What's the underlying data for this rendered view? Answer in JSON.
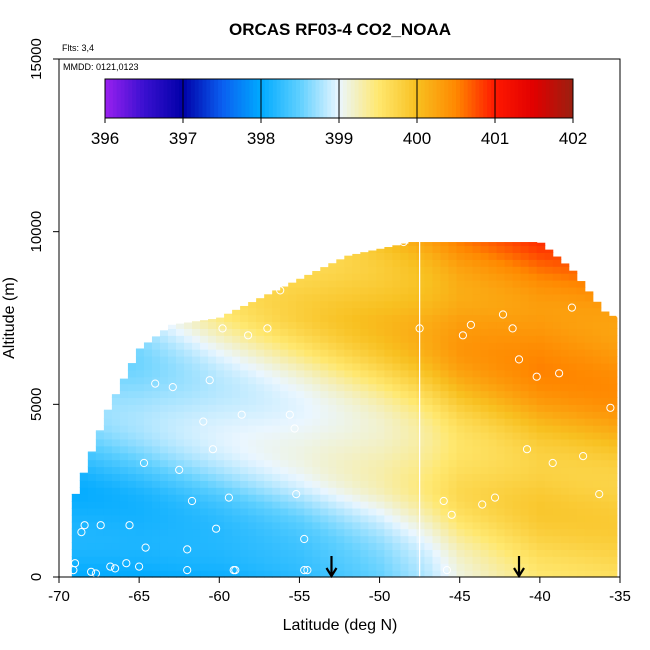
{
  "chart_data": {
    "type": "heatmap",
    "title": "ORCAS RF03-4 CO2_NOAA",
    "xlabel": "Latitude (deg N)",
    "ylabel": "Altitude (m)",
    "xlim": [
      -70,
      -35
    ],
    "ylim": [
      0,
      15000
    ],
    "x_ticks": [
      -70,
      -65,
      -60,
      -55,
      -50,
      -45,
      -40,
      -35
    ],
    "x_tick_labels": [
      "-70",
      "-65",
      "-60",
      "-55",
      "-50",
      "-45",
      "-40",
      "-35"
    ],
    "y_ticks": [
      0,
      5000,
      10000,
      15000
    ],
    "y_tick_labels": [
      "0",
      "5000",
      "10000",
      "15000"
    ],
    "flights_note": "Flts: 3,4",
    "dates_note": "MMDD: 0121,0123",
    "colorbar": {
      "min": 396,
      "max": 402,
      "ticks": [
        396,
        397,
        398,
        399,
        400,
        401,
        402
      ],
      "tick_labels": [
        "396",
        "397",
        "398",
        "399",
        "400",
        "401",
        "402"
      ],
      "stops": [
        {
          "value": 396.0,
          "color": "#9a20f0"
        },
        {
          "value": 396.5,
          "color": "#3a10d0"
        },
        {
          "value": 397.0,
          "color": "#0000a8"
        },
        {
          "value": 397.5,
          "color": "#0a5ef0"
        },
        {
          "value": 398.0,
          "color": "#00aaff"
        },
        {
          "value": 398.5,
          "color": "#60d0ff"
        },
        {
          "value": 399.0,
          "color": "#eaf6ff"
        },
        {
          "value": 399.5,
          "color": "#ffe870"
        },
        {
          "value": 400.0,
          "color": "#f8c020"
        },
        {
          "value": 400.5,
          "color": "#ff8800"
        },
        {
          "value": 401.0,
          "color": "#ff1800"
        },
        {
          "value": 401.5,
          "color": "#e00000"
        },
        {
          "value": 402.0,
          "color": "#9a2010"
        }
      ]
    },
    "coverage_top_alt": [
      {
        "lat": -69.2,
        "alt": 2100
      },
      {
        "lat": -67.0,
        "alt": 4800
      },
      {
        "lat": -65.0,
        "alt": 6600
      },
      {
        "lat": -63.0,
        "alt": 7300
      },
      {
        "lat": -60.0,
        "alt": 7500
      },
      {
        "lat": -56.0,
        "alt": 8400
      },
      {
        "lat": -52.0,
        "alt": 9300
      },
      {
        "lat": -48.0,
        "alt": 9700
      },
      {
        "lat": -40.0,
        "alt": 9700
      },
      {
        "lat": -38.0,
        "alt": 8900
      },
      {
        "lat": -36.0,
        "alt": 7700
      },
      {
        "lat": -35.2,
        "alt": 7500
      }
    ],
    "coverage_bottom_alt": 0,
    "field_model": {
      "description": "CO2 mixing ratio (ppm) as function of latitude and altitude",
      "latitude_points": [
        -70,
        -65,
        -60,
        -55,
        -50,
        -47,
        -45,
        -40,
        -35
      ],
      "surface_ppm": [
        398.0,
        398.0,
        398.05,
        398.2,
        398.5,
        398.8,
        399.1,
        399.5,
        399.6
      ],
      "upper_ppm": [
        398.6,
        398.9,
        399.3,
        399.6,
        399.9,
        400.1,
        400.3,
        400.5,
        400.5
      ]
    },
    "sample_points": [
      {
        "lat": -69.1,
        "alt": 200
      },
      {
        "lat": -69.0,
        "alt": 400
      },
      {
        "lat": -68.4,
        "alt": 1500
      },
      {
        "lat": -68.6,
        "alt": 1300
      },
      {
        "lat": -68.0,
        "alt": 150
      },
      {
        "lat": -67.7,
        "alt": 100
      },
      {
        "lat": -67.4,
        "alt": 1500
      },
      {
        "lat": -66.8,
        "alt": 300
      },
      {
        "lat": -66.5,
        "alt": 250
      },
      {
        "lat": -65.8,
        "alt": 400
      },
      {
        "lat": -65.6,
        "alt": 1500
      },
      {
        "lat": -65.0,
        "alt": 300
      },
      {
        "lat": -64.6,
        "alt": 850
      },
      {
        "lat": -64.7,
        "alt": 3300
      },
      {
        "lat": -64.0,
        "alt": 5600
      },
      {
        "lat": -62.9,
        "alt": 5500
      },
      {
        "lat": -62.5,
        "alt": 3100
      },
      {
        "lat": -62.0,
        "alt": 800
      },
      {
        "lat": -62.0,
        "alt": 200
      },
      {
        "lat": -61.7,
        "alt": 2200
      },
      {
        "lat": -61.0,
        "alt": 4500
      },
      {
        "lat": -60.6,
        "alt": 5700
      },
      {
        "lat": -60.4,
        "alt": 3700
      },
      {
        "lat": -60.2,
        "alt": 1400
      },
      {
        "lat": -59.8,
        "alt": 7200
      },
      {
        "lat": -59.4,
        "alt": 2300
      },
      {
        "lat": -59.1,
        "alt": 200
      },
      {
        "lat": -59.0,
        "alt": 200
      },
      {
        "lat": -58.6,
        "alt": 4700
      },
      {
        "lat": -58.2,
        "alt": 7000
      },
      {
        "lat": -57.0,
        "alt": 7200
      },
      {
        "lat": -56.2,
        "alt": 8300
      },
      {
        "lat": -55.6,
        "alt": 4700
      },
      {
        "lat": -55.3,
        "alt": 4300
      },
      {
        "lat": -55.2,
        "alt": 2400
      },
      {
        "lat": -54.7,
        "alt": 1100
      },
      {
        "lat": -54.7,
        "alt": 200
      },
      {
        "lat": -54.5,
        "alt": 200
      },
      {
        "lat": -48.5,
        "alt": 9700
      },
      {
        "lat": -47.5,
        "alt": 7200
      },
      {
        "lat": -46.0,
        "alt": 2200
      },
      {
        "lat": -45.5,
        "alt": 1800
      },
      {
        "lat": -45.8,
        "alt": 200
      },
      {
        "lat": -44.8,
        "alt": 7000
      },
      {
        "lat": -44.3,
        "alt": 7300
      },
      {
        "lat": -43.6,
        "alt": 2100
      },
      {
        "lat": -42.8,
        "alt": 2300
      },
      {
        "lat": -42.3,
        "alt": 7600
      },
      {
        "lat": -41.7,
        "alt": 7200
      },
      {
        "lat": -41.3,
        "alt": 6300
      },
      {
        "lat": -40.8,
        "alt": 3700
      },
      {
        "lat": -40.2,
        "alt": 5800
      },
      {
        "lat": -39.2,
        "alt": 3300
      },
      {
        "lat": -38.8,
        "alt": 5900
      },
      {
        "lat": -38.0,
        "alt": 7800
      },
      {
        "lat": -37.3,
        "alt": 3500
      },
      {
        "lat": -35.6,
        "alt": 4900
      },
      {
        "lat": -35.0,
        "alt": 7600
      },
      {
        "lat": -36.3,
        "alt": 2400
      }
    ],
    "vertical_line_lat": -47.5,
    "arrows_lat": [
      -53.0,
      -41.3
    ]
  }
}
